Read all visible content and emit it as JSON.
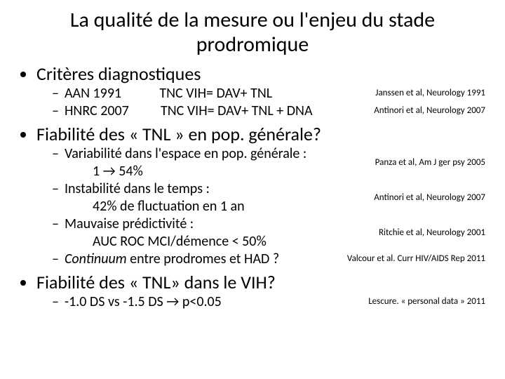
{
  "title": "La qualité de la mesure ou l'enjeu du stade prodromique",
  "bullets": {
    "b1": "Critères diagnostiques",
    "b1_sub1_main": "AAN 1991            TNC VIH= DAV+ TNL",
    "b1_sub1_cite": "Janssen et al, Neurology 1991",
    "b1_sub2_main": "HNRC 2007          TNC VIH= DAV+ TNL + DNA",
    "b1_sub2_cite": "Antinori et al, Neurology 2007",
    "b2": "Fiabilité des « TNL » en pop. générale?",
    "b2_sub1_main": "Variabilité dans l'espace en pop. générale :",
    "b2_sub1_sub": "1 → 54%",
    "b2_sub1_cite": "Panza et al, Am J ger psy 2005",
    "b2_sub2_main": "Instabilité dans le temps :",
    "b2_sub2_sub": "42% de fluctuation en 1 an",
    "b2_sub2_cite": "Antinori et al, Neurology 2007",
    "b2_sub3_main": "Mauvaise prédictivité :",
    "b2_sub3_sub": "AUC ROC MCI/démence < 50%",
    "b2_sub3_cite": "Ritchie et al, Neurology 2001",
    "b2_sub4_main_pre": "Continuum",
    "b2_sub4_main_post": " entre prodromes et HAD ?",
    "b2_sub4_cite": "Valcour et al. Curr HIV/AIDS Rep 2011",
    "b3": "Fiabilité des « TNL» dans le VIH?",
    "b3_sub1_main": "-1.0 DS vs -1.5 DS → p<0.05",
    "b3_sub1_cite": "Lescure. « personal data » 2011"
  }
}
